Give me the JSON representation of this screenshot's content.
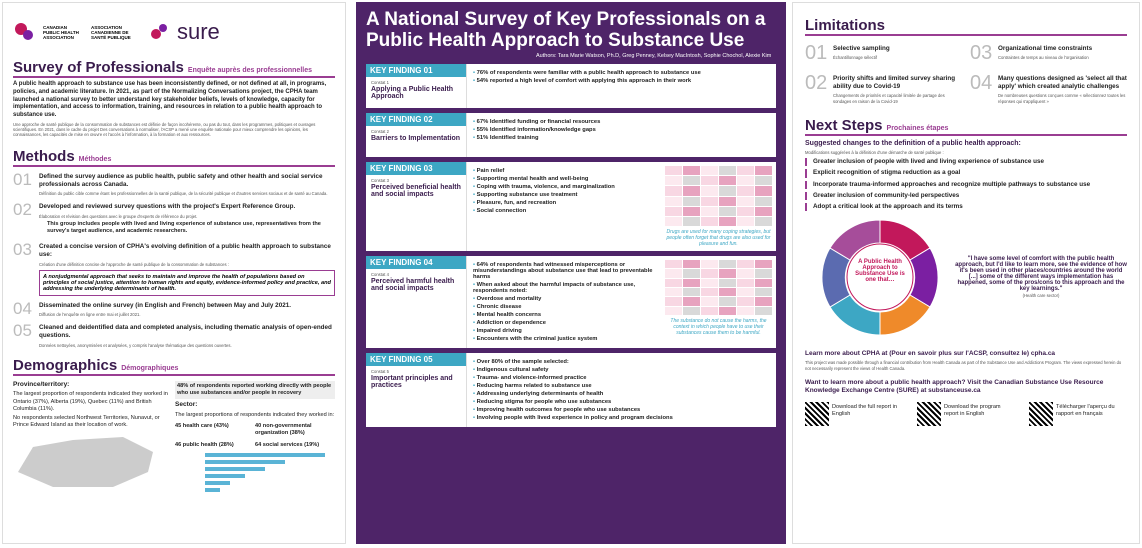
{
  "left": {
    "logo_en": "CANADIAN PUBLIC HEALTH ASSOCIATION",
    "logo_fr": "ASSOCIATION CANADIENNE DE SANTÉ PUBLIQUE",
    "brand": "sure",
    "title": "Survey of Professionals",
    "title_fr": "Enquête auprès des professionnelles",
    "intro": "A public health approach to substance use has been inconsistently defined, or not defined at all, in programs, policies, and academic literature. In 2021, as part of the Normalizing Conversations project, the CPHA team launched a national survey to better understand key stakeholder beliefs, levels of knowledge, capacity for implementation, and access to information, training, and resources in relation to a public health approach to substance use.",
    "intro_fr": "Une approche de santé publique de la consommation de substances est définie de façon incohérente, ou pas du tout, dans les programmes, politiques et ouvrages scientifiques. En 2021, dans le cadre du projet Des conversations à normaliser, l'ACSP a mené une enquête nationale pour mieux comprendre les opinions, les connaissances, les capacités de mise en œuvre et l'accès à l'information, à la formation et aux ressources.",
    "methods_title": "Methods",
    "methods_fr": "Méthodes",
    "methods": [
      {
        "num": "01",
        "text": "Defined the survey audience as public health, public safety and other health and social service professionals across Canada.",
        "fr": "Définition du public cible comme étant les professionnelles de la santé publique, de la sécurité publique et d'autres services sociaux et de santé au Canada."
      },
      {
        "num": "02",
        "text": "Developed and reviewed survey questions with the project's Expert Reference Group.",
        "fr": "Élaboration et révision des questions avec le groupe d'experts de référence du projet.",
        "sub": "This group includes people with lived and living experience of substance use, representatives from the survey's target audience, and academic researchers."
      },
      {
        "num": "03",
        "text": "Created a concise version of CPHA's evolving definition of a public health approach to substance use:",
        "fr": "Création d'une définition concise de l'approche de santé publique de la consommation de substances :",
        "quote": "A nonjudgmental approach that seeks to maintain and improve the health of populations based on principles of social justice, attention to human rights and equity, evidence-informed policy and practice, and addressing the underlying determinants of health."
      },
      {
        "num": "04",
        "text": "Disseminated the online survey (in English and French) between May and July 2021.",
        "fr": "Diffusion de l'enquête en ligne entre mai et juillet 2021."
      },
      {
        "num": "05",
        "text": "Cleaned and deidentified data and completed analysis, including thematic analysis of open-ended questions.",
        "fr": "Données nettoyées, anonymisées et analysées, y compris l'analyse thématique des questions ouvertes."
      }
    ],
    "demo_title": "Demographics",
    "demo_fr": "Démographiques",
    "demo_note": "48% of respondents reported working directly with people who use substances and/or people in recovery",
    "province_title": "Province/territory:",
    "province_lines": [
      "The largest proportion of respondents indicated they worked in Ontario (37%), Alberta (19%), Quebec (11%) and British Columbia (11%).",
      "No respondents selected Northwest Territories, Nunavut, or Prince Edward Island as their location of work."
    ],
    "sector_title": "Sector:",
    "sector_line": "The largest proportions of respondents indicated they worked in:",
    "sectors": [
      "45 health care (43%)",
      "40 non-governmental organization (38%)",
      "46 public health (28%)",
      "64 social services (19%)"
    ]
  },
  "middle": {
    "title": "A National Survey of Key Professionals on a Public Health Approach to Substance Use",
    "authors": "Authors: Tara Marie Watson, Ph.D, Greg Penney, Kelsey MacIntosh, Sophie Chochol, Alexie Kim",
    "findings": [
      {
        "label": "KEY FINDING 01",
        "fr": "Constat 1",
        "heading": "Applying a Public Health Approach",
        "items": [
          "76% of respondents were familiar with a public health approach to substance use",
          "54% reported a high level of comfort with applying this approach in their work"
        ]
      },
      {
        "label": "KEY FINDING 02",
        "fr": "Constat 2",
        "heading": "Barriers to Implementation",
        "items": [
          "67% Identified funding or financial resources",
          "55% Identified information/knowledge gaps",
          "51% Identified training"
        ]
      },
      {
        "label": "KEY FINDING 03",
        "fr": "Constat 3",
        "heading": "Perceived beneficial health and social impacts",
        "items": [
          "Pain relief",
          "Supporting mental health and well-being",
          "Coping with trauma, violence, and marginalization",
          "Supporting substance use treatment",
          "Pleasure, fun, and recreation",
          "Social connection"
        ]
      },
      {
        "label": "KEY FINDING 04",
        "fr": "Constat 4",
        "heading": "Perceived harmful health and social impacts",
        "items": [
          "64% of respondents had witnessed misperceptions or misunderstandings about substance use that lead to preventable harms",
          "When asked about the harmful impacts of substance use, respondents noted:",
          "Overdose and mortality",
          "Chronic disease",
          "Mental health concerns",
          "Addiction or dependence",
          "Impaired driving",
          "Encounters with the criminal justice system"
        ]
      },
      {
        "label": "KEY FINDING 05",
        "fr": "Constat 5",
        "heading": "Important principles and practices",
        "items": [
          "Over 80% of the sample selected:",
          "Indigenous cultural safety",
          "Trauma- and violence-informed practice",
          "Reducing harms related to substance use",
          "Addressing underlying determinants of health",
          "Reducing stigma for people who use substances",
          "Improving health outcomes for people who use substances",
          "Involving people with lived experience in policy and program decisions"
        ]
      }
    ],
    "quote3": "Drugs are used for many coping strategies, but people often forget that drugs are also used for pleasure and fun.",
    "quote4": "The substance do not cause the harms, the context in which people have to use their substances cause them to be harmful."
  },
  "right": {
    "lim_title": "Limitations",
    "limits": [
      {
        "num": "01",
        "text": "Selective sampling",
        "fr": "Échantillonnage sélectif"
      },
      {
        "num": "03",
        "text": "Organizational time constraints",
        "fr": "Contraintes de temps au niveau de l'organisation"
      },
      {
        "num": "02",
        "text": "Priority shifts and limited survey sharing ability due to Covid-19",
        "fr": "Changements de priorités et capacité limitée de partage des sondages en raison de la Covid-19"
      },
      {
        "num": "04",
        "text": "Many questions designed as 'select all that apply' which created analytic challenges",
        "fr": "De nombreuses questions conçues comme « sélectionnez toutes les réponses qui s'appliquent »"
      }
    ],
    "next_title": "Next Steps",
    "next_fr": "Prochaines étapes",
    "next_heading": "Suggested changes to the definition of a public health approach:",
    "next_heading_fr": "Modifications suggérées à la définition d'une démarche de santé publique :",
    "next_items": [
      "Greater inclusion of people with lived and living experience of substance use",
      "Explicit recognition of stigma reduction as a goal",
      "Incorporate trauma-informed approaches and recognize multiple pathways to substance use",
      "Greater inclusion of community-led perspectives",
      "Adopt a critical look at the approach and its terms"
    ],
    "donut_center": "A Public Health Approach to Substance Use is one that…",
    "quote": "\"I have some level of comfort with the public health approach, but I'd like to learn more, see the evidence of how it's been used in other places/countries around the world [...] some of the different ways implementation has happened, some of the pros/cons to this approach and the key learnings.\"",
    "quote_src": "(Health care sector)",
    "learn": "Learn more about CPHA at (Pour en savoir plus sur l'ACSP, consultez le) cpha.ca",
    "learn_body": "This project was made possible through a financial contribution from Health Canada as part of the Substance Use and Addictions Program. The views expressed herein do not necessarily represent the views of Health Canada.",
    "want": "Want to learn more about a public health approach? Visit the Canadian Substance Use Resource Knowledge Exchange Centre (SURE) at substanceuse.ca",
    "qr": [
      "Download the full report in English",
      "Download the program report in English",
      "Télécharger l'aperçu du rapport en français"
    ]
  }
}
